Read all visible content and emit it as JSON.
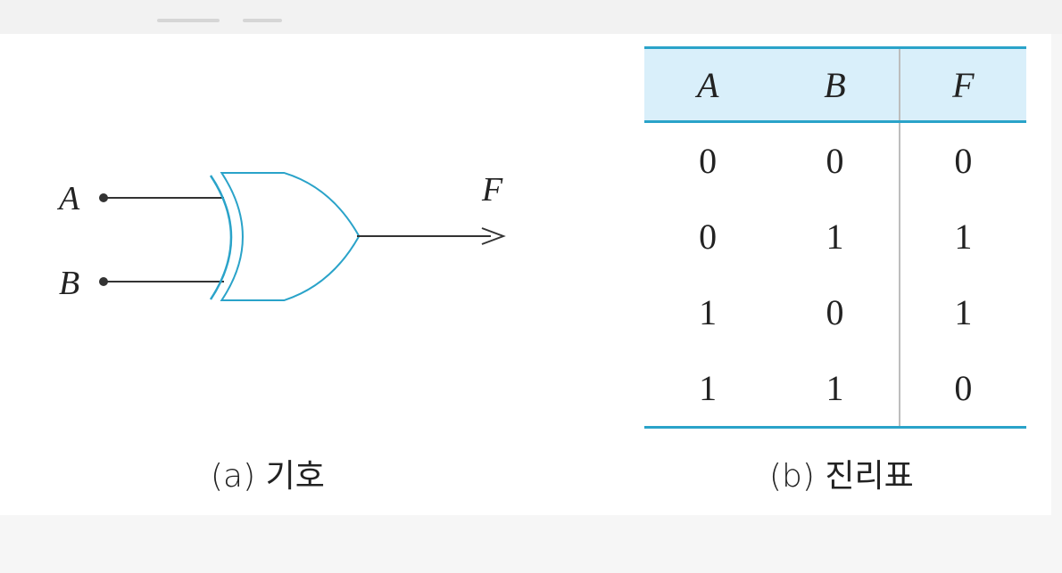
{
  "gate": {
    "input_a": "A",
    "input_b": "B",
    "output": "F",
    "stroke_color": "#2aa3c9"
  },
  "captions": {
    "symbol": "(a) 기호",
    "truth_table": "(b) 진리표"
  },
  "truth_table": {
    "headers": [
      "A",
      "B",
      "F"
    ],
    "rows": [
      [
        "0",
        "0",
        "0"
      ],
      [
        "0",
        "1",
        "1"
      ],
      [
        "1",
        "0",
        "1"
      ],
      [
        "1",
        "1",
        "0"
      ]
    ],
    "header_bg": "#d9effa",
    "rule_color": "#2aa3c9"
  }
}
